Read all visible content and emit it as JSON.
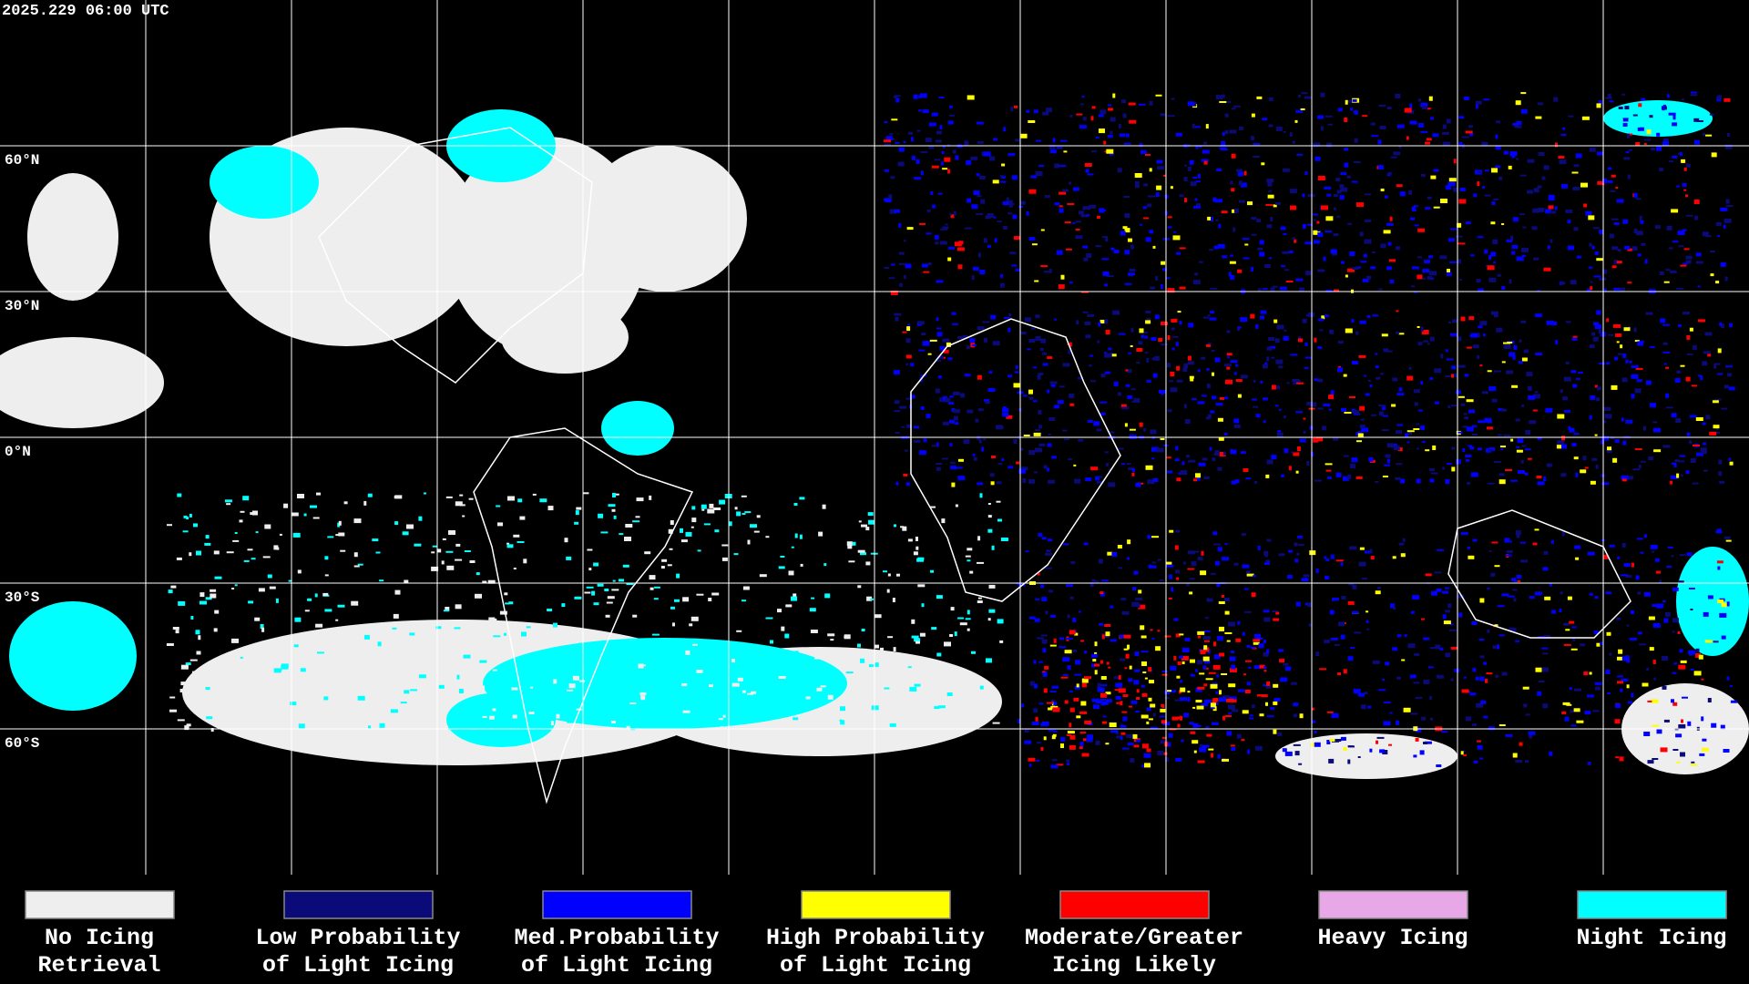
{
  "header": {
    "timestamp": "2025.229 06:00 UTC"
  },
  "map": {
    "latitude_labels": [
      "60°N",
      "30°N",
      "0°N",
      "30°S",
      "60°S"
    ]
  },
  "legend": [
    {
      "label_lines": [
        "No Icing",
        "Retrieval"
      ],
      "color": "#eeeeee"
    },
    {
      "label_lines": [
        "Low Probability",
        "of Light Icing"
      ],
      "color": "#0a0a78"
    },
    {
      "label_lines": [
        "Med.Probability",
        "of Light Icing"
      ],
      "color": "#0000ff"
    },
    {
      "label_lines": [
        "High Probability",
        "of Light Icing"
      ],
      "color": "#ffff00"
    },
    {
      "label_lines": [
        "Moderate/Greater",
        "Icing Likely"
      ],
      "color": "#ff0000"
    },
    {
      "label_lines": [
        "Heavy Icing"
      ],
      "color": "#e8a8e8"
    },
    {
      "label_lines": [
        "Night Icing"
      ],
      "color": "#00ffff"
    }
  ]
}
